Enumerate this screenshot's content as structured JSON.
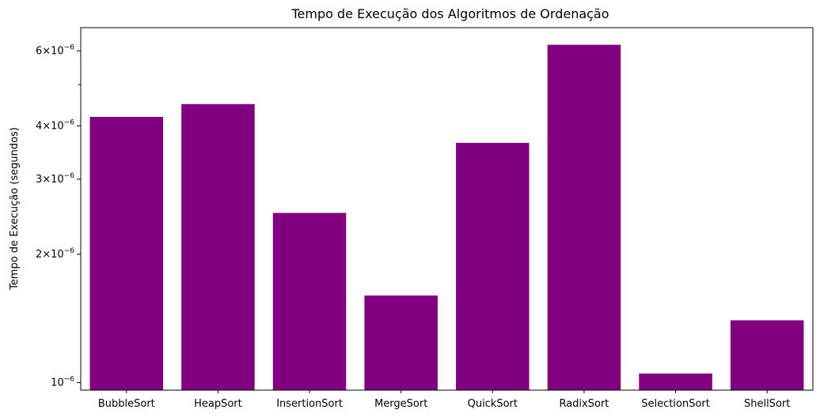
{
  "chart_data": {
    "type": "bar",
    "title": "Tempo de Execução dos Algoritmos de Ordenação",
    "xlabel": "",
    "ylabel": "Tempo de Execução (segundos)",
    "yscale": "log",
    "ylim": [
      9.6e-07,
      6.8e-06
    ],
    "grid": false,
    "bar_color": "#800080",
    "categories": [
      "BubbleSort",
      "HeapSort",
      "InsertionSort",
      "MergeSort",
      "QuickSort",
      "RadixSort",
      "SelectionSort",
      "ShellSort"
    ],
    "values": [
      4.2e-06,
      4.5e-06,
      2.5e-06,
      1.6e-06,
      3.65e-06,
      6.2e-06,
      1.05e-06,
      1.4e-06
    ],
    "y_major_ticks": [
      {
        "value": 1e-06,
        "mantissa": "",
        "exp": "−6"
      },
      {
        "value": 2e-06,
        "mantissa": "2",
        "exp": "−6"
      },
      {
        "value": 3e-06,
        "mantissa": "3",
        "exp": "−6"
      },
      {
        "value": 4e-06,
        "mantissa": "4",
        "exp": "−6"
      },
      {
        "value": 6e-06,
        "mantissa": "6",
        "exp": "−6"
      }
    ],
    "y_minor_ticks": [
      5e-06
    ]
  }
}
